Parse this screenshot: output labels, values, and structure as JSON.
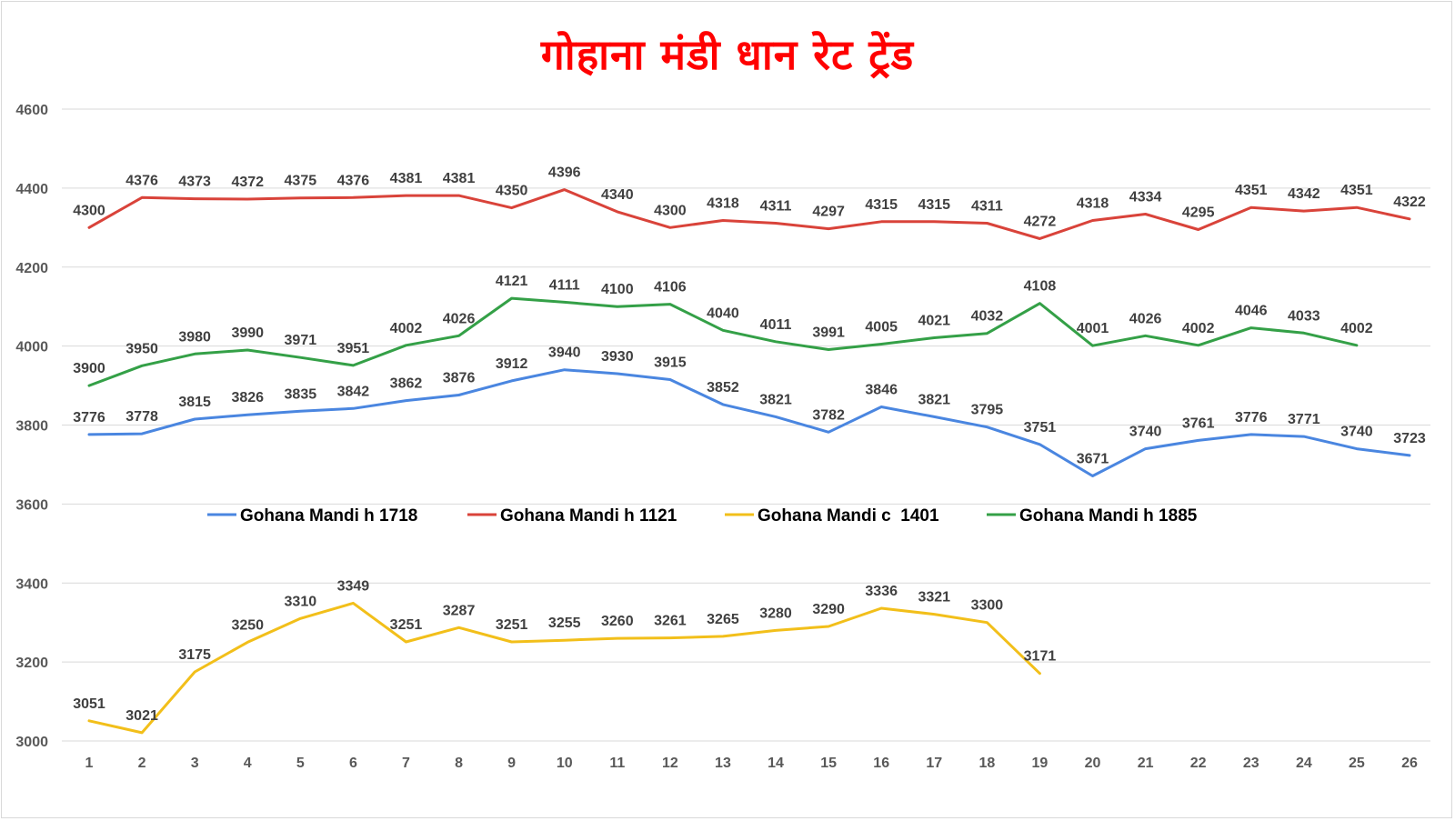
{
  "chart_data": {
    "type": "line",
    "title": "गोहाना मंडी धान रेट ट्रेंड",
    "xlabel": "",
    "ylabel": "",
    "x": [
      1,
      2,
      3,
      4,
      5,
      6,
      7,
      8,
      9,
      10,
      11,
      12,
      13,
      14,
      15,
      16,
      17,
      18,
      19,
      20,
      21,
      22,
      23,
      24,
      25,
      26
    ],
    "ylim": [
      3000,
      4600
    ],
    "yticks": [
      3000,
      3200,
      3400,
      3600,
      3800,
      4000,
      4200,
      4400,
      4600
    ],
    "grid": true,
    "legend_position": "center",
    "series": [
      {
        "name": "Gohana Mandi h 1718",
        "color": "#4a86e0",
        "values": [
          3776,
          3778,
          3815,
          3826,
          3835,
          3842,
          3862,
          3876,
          3912,
          3940,
          3930,
          3915,
          3852,
          3821,
          3782,
          3846,
          3821,
          3795,
          3751,
          3671,
          3740,
          3761,
          3776,
          3771,
          3740,
          3723
        ]
      },
      {
        "name": "Gohana Mandi h 1121",
        "color": "#d9433a",
        "values": [
          4300,
          4376,
          4373,
          4372,
          4375,
          4376,
          4381,
          4381,
          4350,
          4396,
          4340,
          4300,
          4318,
          4311,
          4297,
          4315,
          4315,
          4311,
          4272,
          4318,
          4334,
          4295,
          4351,
          4342,
          4351,
          4322
        ]
      },
      {
        "name": "Gohana Mandi c  1401",
        "color": "#f2bf1a",
        "values": [
          3051,
          3021,
          3175,
          3250,
          3310,
          3349,
          3251,
          3287,
          3251,
          3255,
          3260,
          3261,
          3265,
          3280,
          3290,
          3336,
          3321,
          3300,
          3171,
          null,
          null,
          null,
          null,
          null,
          null,
          null
        ]
      },
      {
        "name": "Gohana Mandi h 1885",
        "color": "#34a047",
        "values": [
          3900,
          3950,
          3980,
          3990,
          3971,
          3951,
          4002,
          4026,
          4121,
          4111,
          4100,
          4106,
          4040,
          4011,
          3991,
          4005,
          4021,
          4032,
          4108,
          4001,
          4026,
          4002,
          4046,
          4033,
          4002,
          null
        ]
      }
    ]
  }
}
